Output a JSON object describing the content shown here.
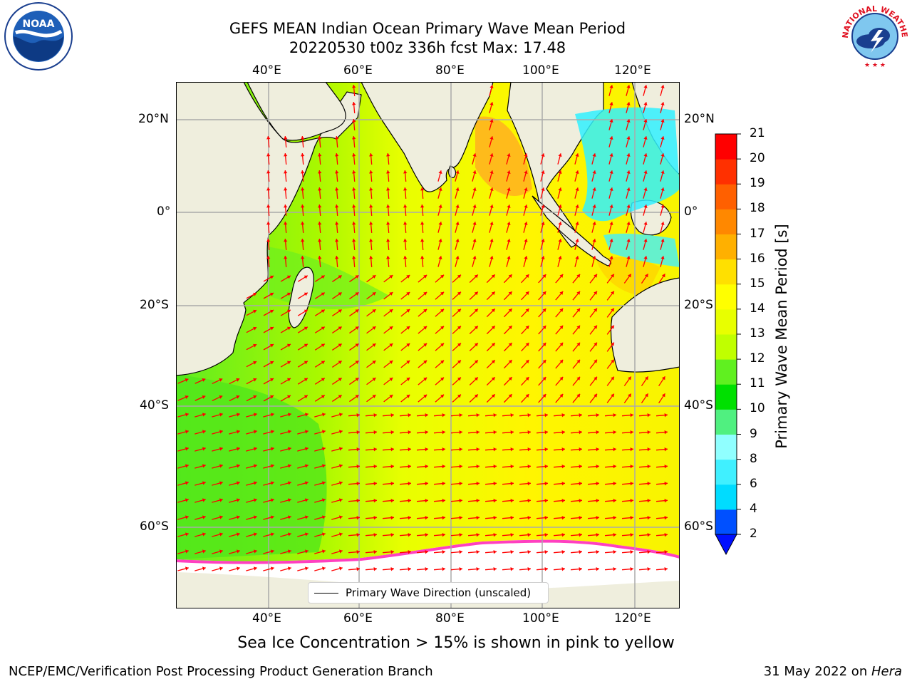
{
  "title_line1": "GEFS MEAN Indian Ocean Primary Wave Mean Period",
  "title_line2": "20220530 t00z 336h fcst   Max: 17.48",
  "lon_ticks": [
    "40°E",
    "60°E",
    "80°E",
    "100°E",
    "120°E"
  ],
  "lat_ticks": [
    "20°N",
    "0°",
    "20°S",
    "40°S",
    "60°S"
  ],
  "colorbar": {
    "label": "Primary Wave Mean Period [s]",
    "ticks": [
      "2",
      "4",
      "6",
      "8",
      "9",
      "10",
      "11",
      "12",
      "13",
      "14",
      "15",
      "16",
      "17",
      "18",
      "19",
      "20",
      "21"
    ],
    "colors": [
      "#0050ff",
      "#00dcff",
      "#40f0ff",
      "#90ffff",
      "#50f080",
      "#00e000",
      "#60f020",
      "#c0ff00",
      "#e8ff00",
      "#ffff00",
      "#ffe000",
      "#ffb000",
      "#ff8800",
      "#ff6000",
      "#ff3000",
      "#ff0000"
    ],
    "under_color": "#0010ff"
  },
  "legend": {
    "label": "Primary Wave Direction (unscaled)"
  },
  "subtitle": "Sea Ice Concentration > 15% is shown in pink to yellow",
  "footer_left": "NCEP/EMC/Verification Post Processing Product Generation Branch",
  "footer_date": "31 May 2022 on ",
  "footer_host": "Hera",
  "logos": {
    "noaa_text": "NOAA",
    "nws_text": "NATIONAL WEATHER SERVICE"
  },
  "colors": {
    "land": "#efeedd",
    "arrow": "#ff0000",
    "ice": "#ffffff",
    "ice_edge": "#ff40c0"
  }
}
